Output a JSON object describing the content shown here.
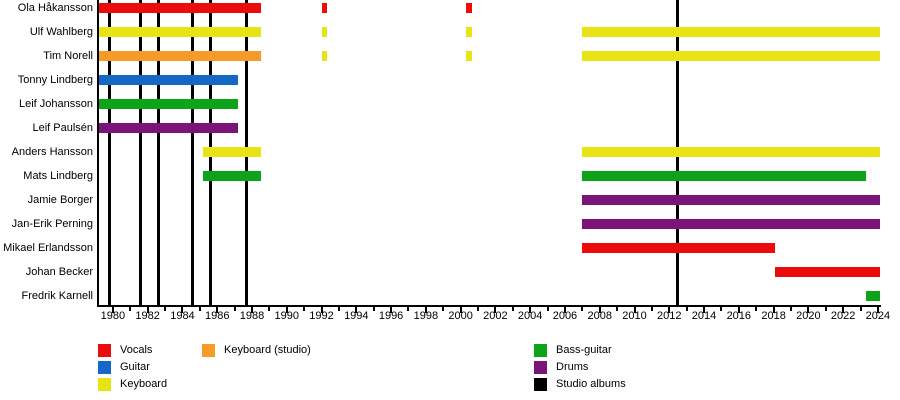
{
  "chart_data": {
    "type": "timeline-gantt",
    "title": "",
    "x_axis": {
      "min": 1979.2,
      "max": 2024.12,
      "minor_tick_every": 1,
      "labeled_tick_every": 2,
      "tick_labels": [
        "1980",
        "1982",
        "1984",
        "1986",
        "1988",
        "1990",
        "1992",
        "1994",
        "1996",
        "1998",
        "2000",
        "2002",
        "2004",
        "2006",
        "2008",
        "2010",
        "2012",
        "2014",
        "2016",
        "2018",
        "2020",
        "2022",
        "2024"
      ]
    },
    "members": [
      {
        "name": "Ola Håkansson",
        "segments": [
          {
            "role": "vocals",
            "start": 1979.2,
            "end": 1988.5
          },
          {
            "role": "vocals",
            "start": 1992.05,
            "end": 1992.3
          },
          {
            "role": "vocals",
            "start": 2000.3,
            "end": 2000.68
          }
        ]
      },
      {
        "name": "Ulf Wahlberg",
        "segments": [
          {
            "role": "keyboard",
            "start": 1979.2,
            "end": 1988.5
          },
          {
            "role": "keyboard",
            "start": 1992.05,
            "end": 1992.3
          },
          {
            "role": "keyboard",
            "start": 2000.3,
            "end": 2000.68
          },
          {
            "role": "keyboard",
            "start": 2007,
            "end": 2024.12
          }
        ]
      },
      {
        "name": "Tim Norell",
        "segments": [
          {
            "role": "keyboard_studio",
            "start": 1979.2,
            "end": 1988.5
          },
          {
            "role": "keyboard",
            "start": 1992.05,
            "end": 1992.3
          },
          {
            "role": "keyboard",
            "start": 2000.3,
            "end": 2000.68
          },
          {
            "role": "keyboard",
            "start": 2007,
            "end": 2024.12
          }
        ]
      },
      {
        "name": "Tonny Lindberg",
        "segments": [
          {
            "role": "guitar",
            "start": 1979.2,
            "end": 1987.2
          }
        ]
      },
      {
        "name": "Leif Johansson",
        "segments": [
          {
            "role": "bass",
            "start": 1979.2,
            "end": 1987.2
          }
        ]
      },
      {
        "name": "Leif Paulsén",
        "segments": [
          {
            "role": "drums",
            "start": 1979.2,
            "end": 1987.2
          }
        ]
      },
      {
        "name": "Anders Hansson",
        "segments": [
          {
            "role": "keyboard",
            "start": 1985.2,
            "end": 1988.5
          },
          {
            "role": "keyboard",
            "start": 2007,
            "end": 2024.12
          }
        ]
      },
      {
        "name": "Mats Lindberg",
        "segments": [
          {
            "role": "bass",
            "start": 1985.2,
            "end": 1988.5
          },
          {
            "role": "bass",
            "start": 2007,
            "end": 2023.3
          }
        ]
      },
      {
        "name": "Jamie Borger",
        "segments": [
          {
            "role": "drums",
            "start": 2007,
            "end": 2024.12
          }
        ]
      },
      {
        "name": "Jan-Erik Perning",
        "segments": [
          {
            "role": "drums",
            "start": 2007,
            "end": 2024.12
          }
        ]
      },
      {
        "name": "Mikael Erlandsson",
        "segments": [
          {
            "role": "vocals",
            "start": 2007,
            "end": 2018.1
          }
        ]
      },
      {
        "name": "Johan Becker",
        "segments": [
          {
            "role": "vocals",
            "start": 2018.1,
            "end": 2024.12
          }
        ]
      },
      {
        "name": "Fredrik Karnell",
        "segments": [
          {
            "role": "bass",
            "start": 2023.3,
            "end": 2024.12
          }
        ]
      }
    ],
    "studio_album_years": [
      1979.8,
      1981.6,
      1982.6,
      1984.6,
      1985.6,
      1987.7,
      2012.5
    ],
    "legend": {
      "groups": [
        {
          "items": [
            {
              "role": "vocals",
              "label": "Vocals"
            },
            {
              "role": "guitar",
              "label": "Guitar"
            },
            {
              "role": "keyboard",
              "label": "Keyboard"
            }
          ]
        },
        {
          "items": [
            {
              "role": "keyboard_studio",
              "label": "Keyboard (studio)"
            }
          ]
        },
        {
          "items": [
            {
              "role": "bass",
              "label": "Bass-guitar"
            },
            {
              "role": "drums",
              "label": "Drums"
            },
            {
              "role": "albums",
              "label": "Studio albums"
            }
          ]
        }
      ]
    },
    "colors": {
      "vocals": "#ED0C0C",
      "guitar": "#1568C8",
      "keyboard": "#E8E314",
      "keyboard_studio": "#F79B28",
      "bass": "#0DA41A",
      "drums": "#7B1478",
      "albums": "#000000",
      "axis": "#000000"
    }
  }
}
